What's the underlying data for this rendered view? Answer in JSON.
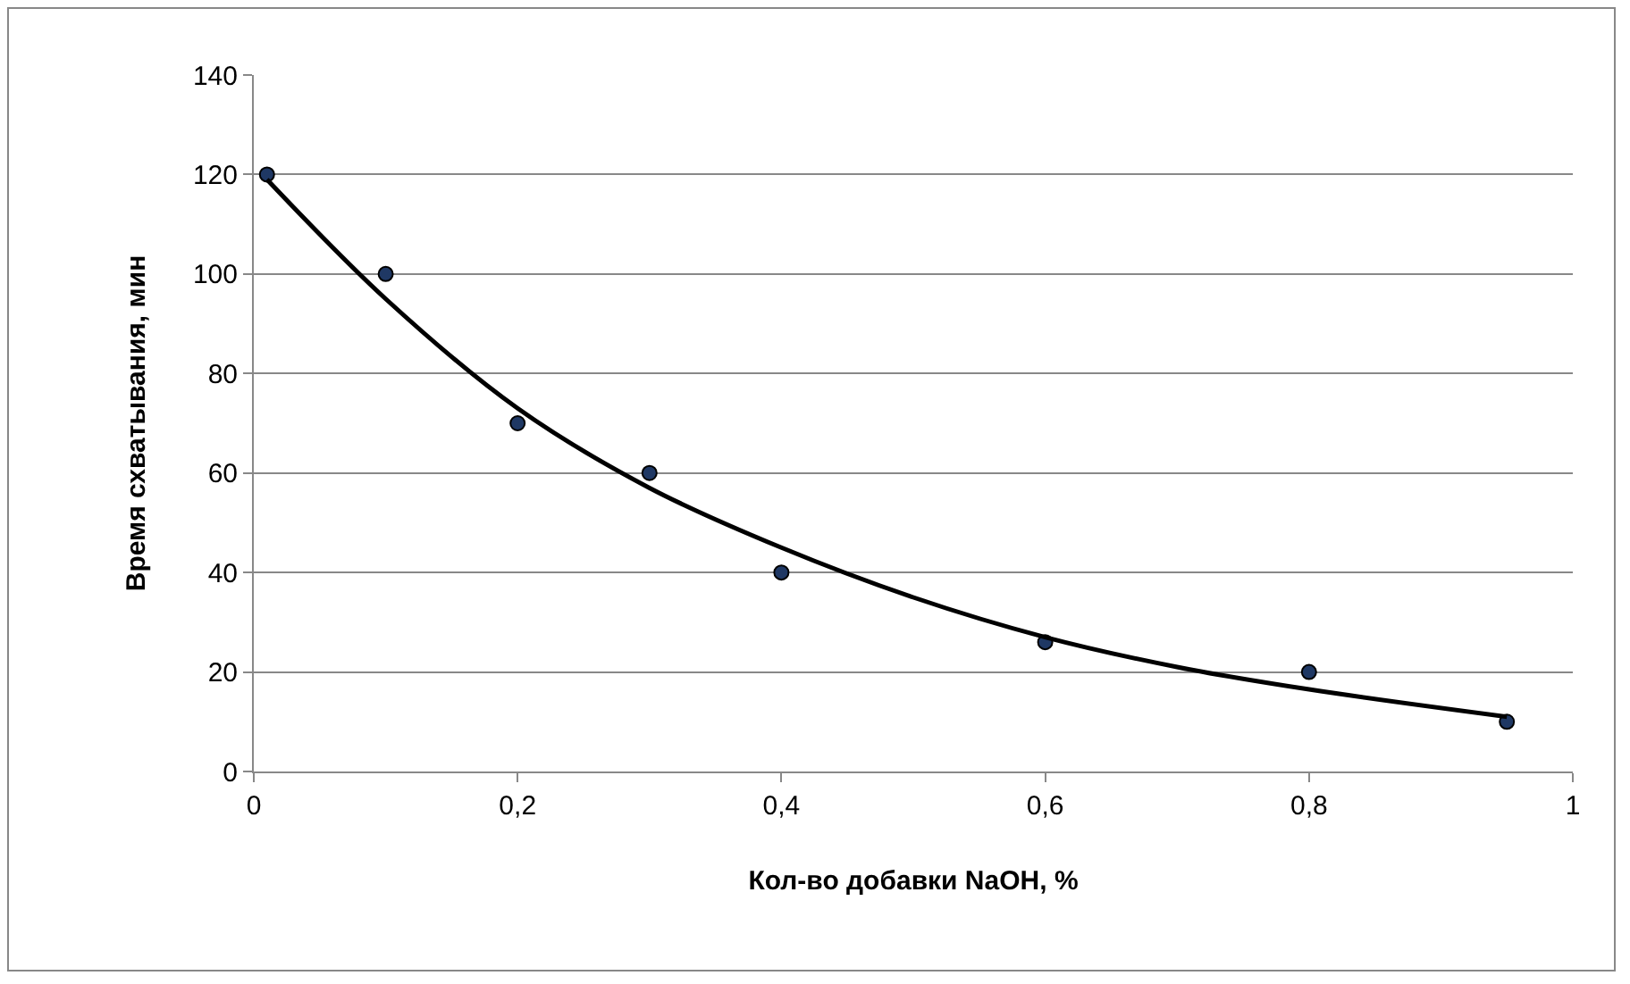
{
  "chart_data": {
    "type": "scatter",
    "xlabel": "Кол-во добавки NaOH, %",
    "ylabel": "Время схватывания, мин",
    "xlim": [
      0,
      1
    ],
    "xticks": [
      0,
      {
        "value": 0.2,
        "label": "0,2"
      },
      {
        "value": 0.4,
        "label": "0,4"
      },
      {
        "value": 0.6,
        "label": "0,6"
      },
      {
        "value": 0.8,
        "label": "0,8"
      },
      1
    ],
    "ylim": [
      0,
      140
    ],
    "yticks": [
      0,
      20,
      40,
      60,
      80,
      100,
      120,
      140
    ],
    "grid": "y",
    "series": [
      {
        "marker": "circle",
        "color": "#1f3864",
        "x": [
          0.01,
          0.1,
          0.2,
          0.3,
          0.4,
          0.6,
          0.8,
          0.95
        ],
        "values": [
          120,
          100,
          70,
          60,
          40,
          26,
          20,
          10
        ]
      },
      {
        "type": "line",
        "marker": "none",
        "line_style": "solid",
        "color": "#000000",
        "x": [
          0.01,
          0.1,
          0.2,
          0.3,
          0.4,
          0.5,
          0.6,
          0.7,
          0.8,
          0.95
        ],
        "values": [
          119,
          95,
          73,
          57,
          45,
          35,
          27,
          21,
          16.5,
          11
        ]
      }
    ]
  }
}
